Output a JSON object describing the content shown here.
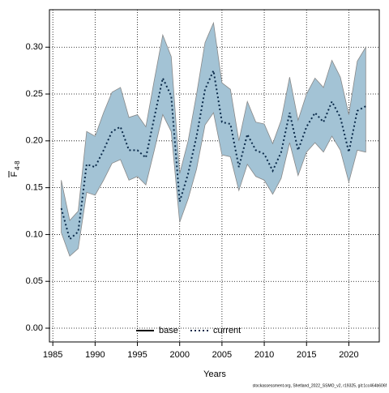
{
  "chart_data": {
    "type": "band_line",
    "xlabel": "Years",
    "ylabel": "F",
    "ylabel_subscript": "4-8",
    "footer": "stockassessment.org, Shetland_2022_SSMO_v2, r19325, git:1cc464b606f",
    "x": [
      1986,
      1987,
      1988,
      1989,
      1990,
      1991,
      1992,
      1993,
      1994,
      1995,
      1996,
      1997,
      1998,
      1999,
      2000,
      2001,
      2002,
      2003,
      2004,
      2005,
      2006,
      2007,
      2008,
      2009,
      2010,
      2011,
      2012,
      2013,
      2014,
      2015,
      2016,
      2017,
      2018,
      2019,
      2020,
      2021,
      2022
    ],
    "series": [
      {
        "name": "current",
        "color": "#0a2a4a",
        "style": "dotted",
        "values": [
          0.128,
          0.095,
          0.103,
          0.175,
          0.172,
          0.19,
          0.21,
          0.215,
          0.19,
          0.19,
          0.182,
          0.225,
          0.267,
          0.248,
          0.135,
          0.165,
          0.205,
          0.255,
          0.275,
          0.22,
          0.218,
          0.172,
          0.207,
          0.19,
          0.186,
          0.168,
          0.188,
          0.23,
          0.19,
          0.215,
          0.23,
          0.22,
          0.242,
          0.225,
          0.188,
          0.232,
          0.237
        ],
        "upper": [
          0.158,
          0.115,
          0.125,
          0.21,
          0.205,
          0.23,
          0.252,
          0.257,
          0.225,
          0.228,
          0.215,
          0.265,
          0.313,
          0.29,
          0.165,
          0.2,
          0.25,
          0.305,
          0.326,
          0.262,
          0.255,
          0.2,
          0.242,
          0.22,
          0.218,
          0.197,
          0.222,
          0.268,
          0.222,
          0.25,
          0.267,
          0.257,
          0.286,
          0.268,
          0.228,
          0.285,
          0.3
        ],
        "lower": [
          0.102,
          0.077,
          0.085,
          0.145,
          0.142,
          0.158,
          0.176,
          0.18,
          0.158,
          0.162,
          0.153,
          0.19,
          0.228,
          0.21,
          0.113,
          0.138,
          0.17,
          0.217,
          0.23,
          0.185,
          0.183,
          0.147,
          0.175,
          0.162,
          0.158,
          0.143,
          0.16,
          0.198,
          0.163,
          0.188,
          0.198,
          0.188,
          0.205,
          0.19,
          0.156,
          0.19,
          0.188
        ]
      }
    ],
    "band_color": "#a3c3d5",
    "legend": [
      {
        "name": "base",
        "color": "#000000",
        "style": "solid"
      },
      {
        "name": "current",
        "color": "#0a2a4a",
        "style": "dotted"
      }
    ],
    "legend_position": "bottom",
    "xlim": [
      1984.6,
      2023.6
    ],
    "ylim": [
      -0.0147,
      0.34
    ],
    "xticks": [
      1985,
      1990,
      1995,
      2000,
      2005,
      2010,
      2015,
      2020
    ],
    "yticks": [
      {
        "value": 0,
        "label": "0.00"
      },
      0.05,
      {
        "value": 0.1,
        "label": "0.10"
      },
      0.15,
      {
        "value": 0.2,
        "label": "0.20"
      },
      0.25,
      {
        "value": 0.3,
        "label": "0.30"
      }
    ],
    "grid": true
  }
}
